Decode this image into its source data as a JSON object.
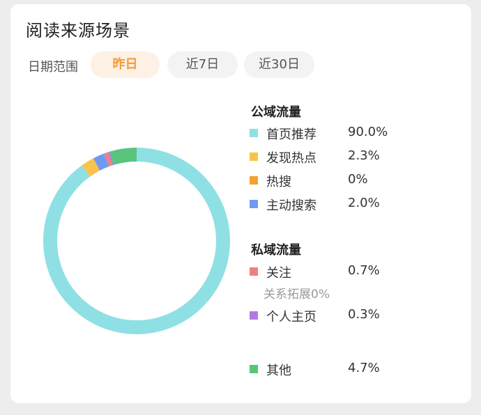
{
  "card": {
    "title": "阅读来源场景",
    "range_label": "日期范围",
    "ranges": [
      {
        "label": "昨日",
        "active": true
      },
      {
        "label": "近7日",
        "active": false
      },
      {
        "label": "近30日",
        "active": false
      }
    ]
  },
  "legend": {
    "public_title": "公域流量",
    "public_items": [
      {
        "label": "首页推荐",
        "value": "90.0%",
        "color": "#8fe0e4",
        "icon": "square-swatch"
      },
      {
        "label": "发现热点",
        "value": "2.3%",
        "color": "#f9c34b",
        "icon": "square-swatch"
      },
      {
        "label": "热搜",
        "value": "0%",
        "color": "#f6a030",
        "icon": "square-swatch"
      },
      {
        "label": "主动搜索",
        "value": "2.0%",
        "color": "#6f9af2",
        "icon": "square-swatch"
      }
    ],
    "private_title": "私域流量",
    "private_items": [
      {
        "label": "关注",
        "value": "0.7%",
        "color": "#f08080",
        "icon": "square-swatch"
      },
      {
        "label": "个人主页",
        "value": "0.3%",
        "color": "#b37be0",
        "icon": "square-swatch"
      }
    ],
    "sub_note": "关系拓展0%",
    "other": {
      "label": "其他",
      "value": "4.7%",
      "color": "#58c47e",
      "icon": "square-swatch"
    }
  },
  "chart_data": {
    "type": "pie",
    "style": "donut",
    "categories": [
      "首页推荐",
      "发现热点",
      "热搜",
      "主动搜索",
      "关注",
      "关系拓展",
      "个人主页",
      "其他"
    ],
    "values": [
      90.0,
      2.3,
      0,
      2.0,
      0.7,
      0,
      0.3,
      4.7
    ],
    "colors": [
      "#8fe0e4",
      "#f9c34b",
      "#f6a030",
      "#6f9af2",
      "#f08080",
      "#999999",
      "#b37be0",
      "#58c47e"
    ],
    "start": "top",
    "direction": "clockwise"
  }
}
